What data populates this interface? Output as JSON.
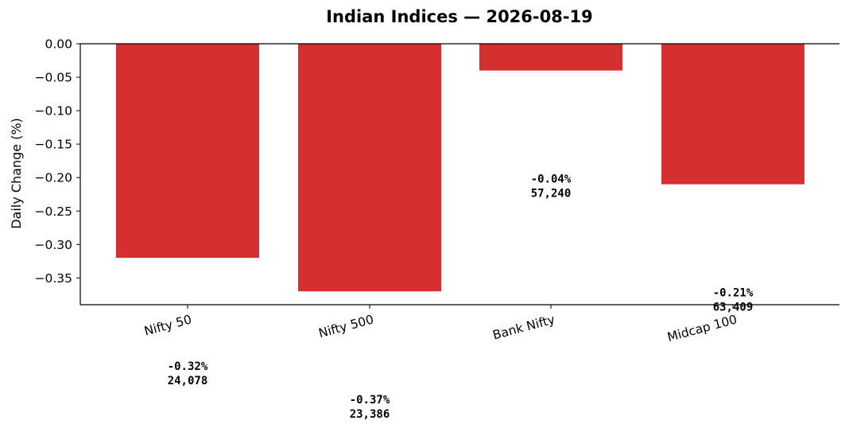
{
  "chart_data": {
    "type": "bar",
    "title": "Indian Indices — 2026-08-19",
    "xlabel": "",
    "ylabel": "Daily Change (%)",
    "categories": [
      "Nifty 50",
      "Nifty 500",
      "Bank Nifty",
      "Midcap 100"
    ],
    "values": [
      -0.32,
      -0.37,
      -0.04,
      -0.21
    ],
    "bar_color": "#d62f2f",
    "data_labels": [
      {
        "change": "-0.32%",
        "level": "24,078"
      },
      {
        "change": "-0.37%",
        "level": "23,386"
      },
      {
        "change": "-0.04%",
        "level": "57,240"
      },
      {
        "change": "-0.21%",
        "level": "63,409"
      }
    ],
    "ylim": [
      -0.39,
      0.0
    ],
    "yticks": [
      "0.00",
      "−0.05",
      "−0.10",
      "−0.15",
      "−0.20",
      "−0.25",
      "−0.30",
      "−0.35"
    ],
    "ytick_values": [
      0.0,
      -0.05,
      -0.1,
      -0.15,
      -0.2,
      -0.25,
      -0.3,
      -0.35
    ],
    "grid": false,
    "legend": "none"
  }
}
